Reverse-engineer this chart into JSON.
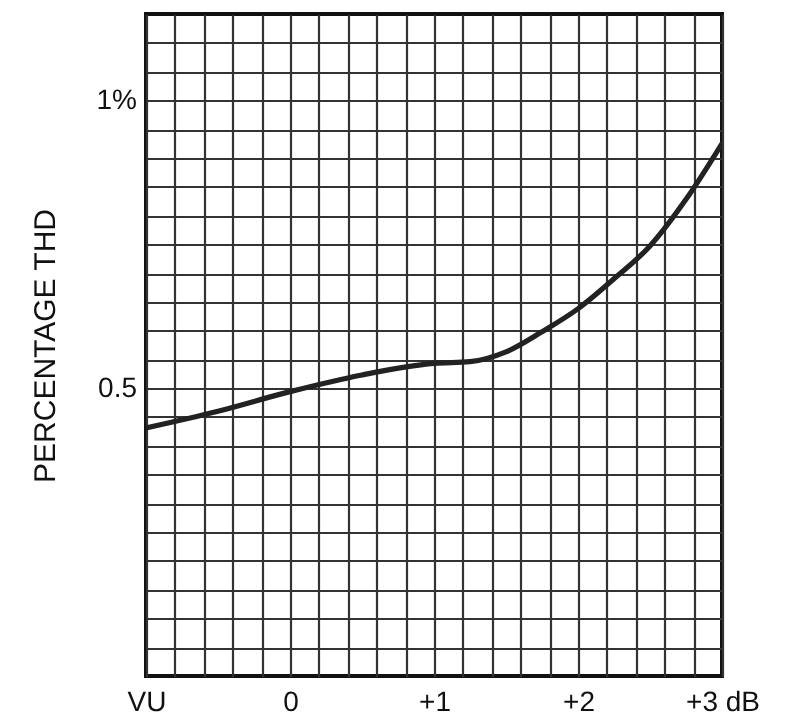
{
  "chart_data": {
    "type": "line",
    "xlabel": null,
    "ylabel": "PERCENTAGE THD",
    "x": [
      -1,
      -0.5,
      0,
      0.5,
      1,
      1.25,
      1.5,
      1.75,
      2,
      2.25,
      2.5,
      2.75,
      3
    ],
    "series": [
      {
        "color": "#222222",
        "values": [
          0.431,
          0.46,
          0.494,
          0.523,
          0.543,
          0.546,
          0.563,
          0.598,
          0.638,
          0.69,
          0.747,
          0.828,
          0.925
        ]
      }
    ],
    "xlim": [
      -1,
      3
    ],
    "xticks": [
      {
        "value": -1,
        "label": "VU"
      },
      {
        "value": -0.8,
        "label": null
      },
      {
        "value": -0.6,
        "label": null
      },
      {
        "value": -0.4,
        "label": null
      },
      {
        "value": -0.2,
        "label": null
      },
      {
        "value": 0,
        "label": "0"
      },
      {
        "value": 0.2,
        "label": null
      },
      {
        "value": 0.4,
        "label": null
      },
      {
        "value": 0.6,
        "label": null
      },
      {
        "value": 0.8,
        "label": null
      },
      {
        "value": 1,
        "label": "+1"
      },
      {
        "value": 1.2,
        "label": null
      },
      {
        "value": 1.4,
        "label": null
      },
      {
        "value": 1.6,
        "label": null
      },
      {
        "value": 1.8,
        "label": null
      },
      {
        "value": 2,
        "label": "+2"
      },
      {
        "value": 2.2,
        "label": null
      },
      {
        "value": 2.4,
        "label": null
      },
      {
        "value": 2.6,
        "label": null
      },
      {
        "value": 2.8,
        "label": null
      },
      {
        "value": 3,
        "label": "+3 dB"
      }
    ],
    "ylim": [
      0,
      1.15
    ],
    "yticks": [
      {
        "value": 0.05,
        "label": null
      },
      {
        "value": 0.1,
        "label": null
      },
      {
        "value": 0.15,
        "label": null
      },
      {
        "value": 0.2,
        "label": null
      },
      {
        "value": 0.25,
        "label": null
      },
      {
        "value": 0.3,
        "label": null
      },
      {
        "value": 0.35,
        "label": null
      },
      {
        "value": 0.4,
        "label": null
      },
      {
        "value": 0.45,
        "label": null
      },
      {
        "value": 0.5,
        "label": "0.5"
      },
      {
        "value": 0.55,
        "label": null
      },
      {
        "value": 0.6,
        "label": null
      },
      {
        "value": 0.65,
        "label": null
      },
      {
        "value": 0.7,
        "label": null
      },
      {
        "value": 0.75,
        "label": null
      },
      {
        "value": 0.8,
        "label": null
      },
      {
        "value": 0.85,
        "label": null
      },
      {
        "value": 0.9,
        "label": null
      },
      {
        "value": 0.95,
        "label": null
      },
      {
        "value": 1,
        "label": "1%"
      },
      {
        "value": 1.05,
        "label": null
      },
      {
        "value": 1.1,
        "label": null
      }
    ],
    "grid": true,
    "marker": "none",
    "line_style": "solid"
  }
}
